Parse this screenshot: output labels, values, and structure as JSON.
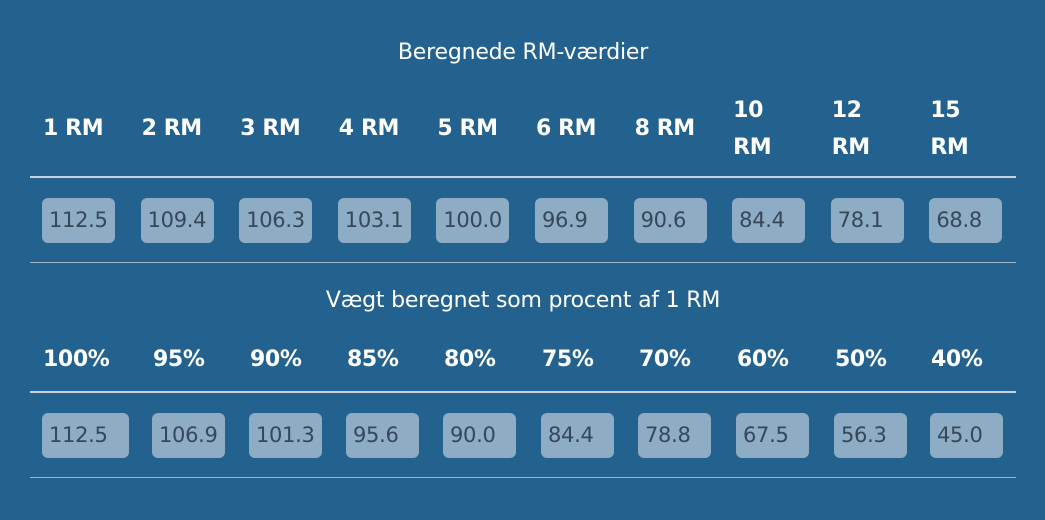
{
  "rm_section": {
    "title": "Beregnede RM-værdier",
    "headers": [
      "1 RM",
      "2 RM",
      "3 RM",
      "4 RM",
      "5 RM",
      "6 RM",
      "8 RM",
      "10 RM",
      "12 RM",
      "15 RM"
    ],
    "values": [
      "112.5",
      "109.4",
      "106.3",
      "103.1",
      "100.0",
      "96.9",
      "90.6",
      "84.4",
      "78.1",
      "68.8"
    ]
  },
  "pct_section": {
    "title": "Vægt beregnet som procent af 1 RM",
    "headers": [
      "100%",
      "95%",
      "90%",
      "85%",
      "80%",
      "75%",
      "70%",
      "60%",
      "50%",
      "40%"
    ],
    "values": [
      "112.5",
      "106.9",
      "101.3",
      "95.6",
      "90.0",
      "84.4",
      "78.8",
      "67.5",
      "56.3",
      "45.0"
    ]
  }
}
